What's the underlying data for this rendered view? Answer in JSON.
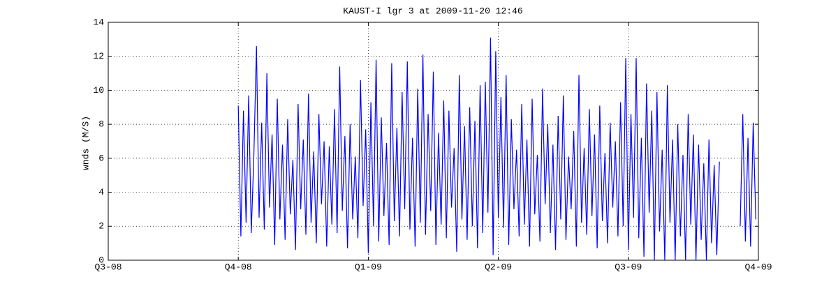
{
  "chart_data": {
    "type": "line",
    "title": "KAUST-I lgr 3 at 2009-11-20 12:46",
    "y_label": "wnds (M/S)",
    "xlim": [
      0,
      5
    ],
    "xticks": [
      {
        "value": 0,
        "label": "Q3-08"
      },
      {
        "value": 1,
        "label": "Q4-08"
      },
      {
        "value": 2,
        "label": "Q1-09"
      },
      {
        "value": 3,
        "label": "Q2-09"
      },
      {
        "value": 4,
        "label": "Q3-09"
      },
      {
        "value": 5,
        "label": "Q4-09"
      }
    ],
    "ylim": [
      0,
      14
    ],
    "yticks": [
      0,
      2,
      4,
      6,
      8,
      10,
      12,
      14
    ],
    "grid": true,
    "x": [
      1.0,
      1.02,
      1.04,
      1.06,
      1.08,
      1.1,
      1.12,
      1.14,
      1.16,
      1.18,
      1.2,
      1.22,
      1.24,
      1.26,
      1.28,
      1.3,
      1.32,
      1.34,
      1.36,
      1.38,
      1.4,
      1.42,
      1.44,
      1.46,
      1.48,
      1.5,
      1.52,
      1.54,
      1.56,
      1.58,
      1.6,
      1.62,
      1.64,
      1.66,
      1.68,
      1.7,
      1.72,
      1.74,
      1.76,
      1.78,
      1.8,
      1.82,
      1.84,
      1.86,
      1.88,
      1.9,
      1.92,
      1.94,
      1.96,
      1.98,
      2.0,
      2.02,
      2.04,
      2.06,
      2.08,
      2.1,
      2.12,
      2.14,
      2.16,
      2.18,
      2.2,
      2.22,
      2.24,
      2.26,
      2.28,
      2.3,
      2.32,
      2.34,
      2.36,
      2.38,
      2.4,
      2.42,
      2.44,
      2.46,
      2.48,
      2.5,
      2.52,
      2.54,
      2.56,
      2.58,
      2.6,
      2.62,
      2.64,
      2.66,
      2.68,
      2.7,
      2.72,
      2.74,
      2.76,
      2.78,
      2.8,
      2.82,
      2.84,
      2.86,
      2.88,
      2.9,
      2.92,
      2.94,
      2.96,
      2.98,
      3.0,
      3.02,
      3.04,
      3.06,
      3.08,
      3.1,
      3.12,
      3.14,
      3.16,
      3.18,
      3.2,
      3.22,
      3.24,
      3.26,
      3.28,
      3.3,
      3.32,
      3.34,
      3.36,
      3.38,
      3.4,
      3.42,
      3.44,
      3.46,
      3.48,
      3.5,
      3.52,
      3.54,
      3.56,
      3.58,
      3.6,
      3.62,
      3.64,
      3.66,
      3.68,
      3.7,
      3.72,
      3.74,
      3.76,
      3.78,
      3.8,
      3.82,
      3.84,
      3.86,
      3.88,
      3.9,
      3.92,
      3.94,
      3.96,
      3.98,
      4.0,
      4.02,
      4.04,
      4.06,
      4.08,
      4.1,
      4.12,
      4.14,
      4.16,
      4.18,
      4.2,
      4.22,
      4.24,
      4.26,
      4.28,
      4.3,
      4.32,
      4.34,
      4.36,
      4.38,
      4.4,
      4.42,
      4.44,
      4.46,
      4.48,
      4.5,
      4.52,
      4.54,
      4.56,
      4.58,
      4.6,
      4.62,
      4.64,
      4.66,
      4.68,
      4.7,
      4.72,
      4.74,
      4.76,
      4.78,
      4.8,
      4.82,
      4.84,
      4.86,
      4.88,
      4.9,
      4.92,
      4.94,
      4.96,
      4.98
    ],
    "series": [
      {
        "color": "#0000ff",
        "values": [
          9.1,
          1.4,
          8.8,
          2.2,
          9.7,
          1.6,
          6.2,
          12.6,
          2.5,
          8.1,
          1.8,
          11.0,
          3.1,
          7.4,
          0.9,
          9.5,
          2.4,
          6.8,
          1.2,
          8.3,
          2.7,
          5.9,
          0.6,
          9.2,
          3.0,
          7.1,
          1.5,
          9.8,
          2.2,
          6.4,
          1.0,
          8.6,
          3.3,
          7.0,
          0.8,
          6.7,
          2.1,
          8.9,
          1.6,
          11.4,
          2.9,
          7.3,
          0.7,
          8.0,
          2.4,
          6.1,
          1.3,
          10.6,
          3.2,
          7.7,
          0.4,
          9.3,
          2.0,
          11.8,
          1.1,
          8.4,
          2.6,
          6.9,
          0.9,
          11.6,
          2.3,
          7.8,
          1.4,
          9.9,
          3.0,
          11.7,
          1.8,
          7.2,
          0.8,
          10.1,
          2.2,
          12.1,
          1.5,
          8.6,
          2.9,
          11.1,
          0.9,
          7.5,
          2.1,
          9.4,
          1.3,
          8.8,
          3.1,
          6.6,
          0.5,
          10.9,
          2.4,
          7.9,
          1.2,
          9.0,
          2.0,
          8.2,
          0.7,
          10.3,
          1.6,
          10.5,
          2.8,
          13.1,
          0.3,
          12.3,
          2.5,
          9.6,
          1.9,
          10.9,
          0.9,
          8.3,
          3.0,
          6.5,
          1.4,
          9.2,
          2.1,
          7.1,
          0.8,
          9.5,
          2.7,
          6.2,
          1.1,
          10.1,
          3.3,
          8.0,
          1.6,
          6.8,
          0.6,
          8.5,
          2.4,
          9.7,
          1.2,
          6.1,
          3.0,
          7.6,
          0.8,
          10.9,
          2.2,
          6.6,
          1.5,
          8.9,
          2.6,
          7.4,
          0.7,
          9.1,
          2.3,
          6.3,
          1.0,
          8.1,
          3.1,
          7.0,
          1.4,
          9.3,
          2.0,
          11.9,
          0.6,
          8.6,
          2.5,
          11.9,
          1.3,
          7.2,
          0.2,
          10.4,
          2.8,
          8.8,
          0.0,
          9.9,
          1.7,
          6.5,
          0.0,
          10.3,
          2.2,
          7.1,
          0.0,
          8.0,
          1.4,
          6.2,
          0.0,
          8.6,
          2.1,
          7.4,
          0.0,
          6.8,
          1.2,
          5.7,
          0.0,
          7.1,
          1.0,
          5.6,
          0.3,
          5.8,
          null,
          null,
          null,
          null,
          null,
          null,
          null,
          2.0,
          8.6,
          1.1,
          7.2,
          0.8,
          8.1,
          2.4
        ]
      }
    ]
  }
}
